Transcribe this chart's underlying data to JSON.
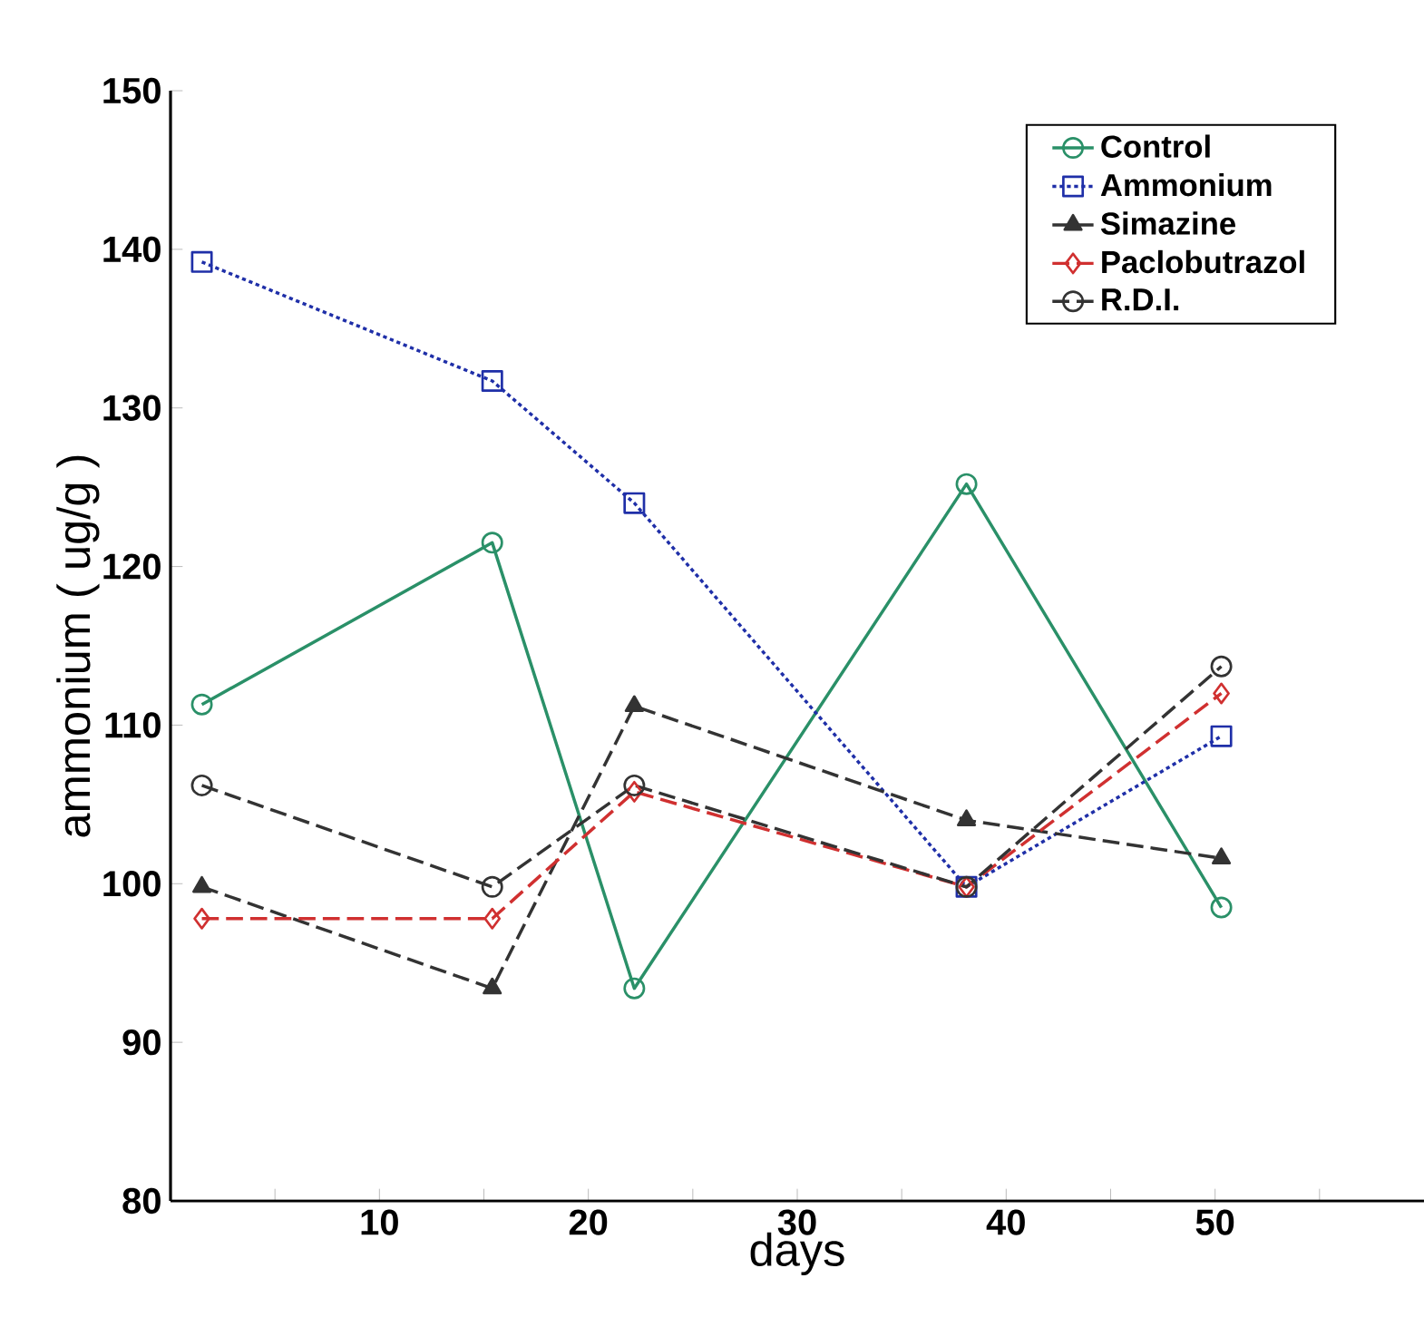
{
  "chart_data": {
    "type": "line",
    "xlabel": "days",
    "ylabel": "ammonium ( ug/g )",
    "x": [
      1.5,
      15.4,
      22.2,
      38.1,
      50.3
    ],
    "xlim": [
      0,
      60
    ],
    "ylim": [
      80,
      150
    ],
    "xticks": [
      {
        "value": 5,
        "label": null
      },
      10,
      {
        "value": 15,
        "label": null
      },
      20,
      {
        "value": 25,
        "label": null
      },
      30,
      {
        "value": 35,
        "label": null
      },
      40,
      {
        "value": 45,
        "label": null
      },
      50,
      {
        "value": 55,
        "label": null
      }
    ],
    "yticks": [
      80,
      90,
      100,
      110,
      120,
      130,
      140,
      150
    ],
    "grid": false,
    "legend": "top right",
    "series": [
      {
        "name": "Control",
        "color": "#2a9068",
        "marker": "circle",
        "line_style": "solid",
        "values": [
          111.3,
          121.5,
          93.4,
          125.2,
          98.5
        ]
      },
      {
        "name": "Ammonium",
        "color": "#1f2fa8",
        "marker": "square",
        "line_style": "dotted",
        "values": [
          139.2,
          131.7,
          124.0,
          99.8,
          109.3
        ]
      },
      {
        "name": "Simazine",
        "color": "#333333",
        "marker": "triangle",
        "line_style": "dashed",
        "values": [
          99.8,
          93.4,
          111.2,
          104.0,
          101.6
        ]
      },
      {
        "name": "Paclobutrazol",
        "color": "#d03030",
        "marker": "diamond",
        "line_style": "dashed",
        "values": [
          97.8,
          97.8,
          105.8,
          99.8,
          112.0
        ]
      },
      {
        "name": "R.D.I.",
        "color": "#333333",
        "marker": "circle",
        "line_style": "dashed",
        "values": [
          106.2,
          99.8,
          106.2,
          99.8,
          113.7
        ]
      }
    ]
  }
}
